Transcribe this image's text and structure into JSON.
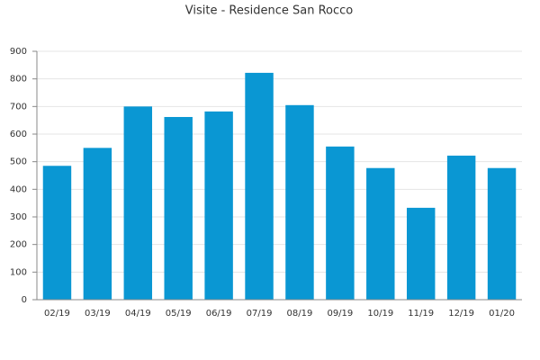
{
  "chart_data": {
    "type": "bar",
    "title": "Visite - Residence San Rocco",
    "categories": [
      "02/19",
      "03/19",
      "04/19",
      "05/19",
      "06/19",
      "07/19",
      "08/19",
      "09/19",
      "10/19",
      "11/19",
      "12/19",
      "01/20"
    ],
    "values": [
      485,
      550,
      700,
      662,
      682,
      822,
      705,
      555,
      477,
      333,
      522,
      477
    ],
    "color": "#0a97d3",
    "ylim": [
      0,
      900
    ],
    "yticks": [
      0,
      100,
      200,
      300,
      400,
      500,
      600,
      700,
      800,
      900
    ],
    "grid": true
  }
}
